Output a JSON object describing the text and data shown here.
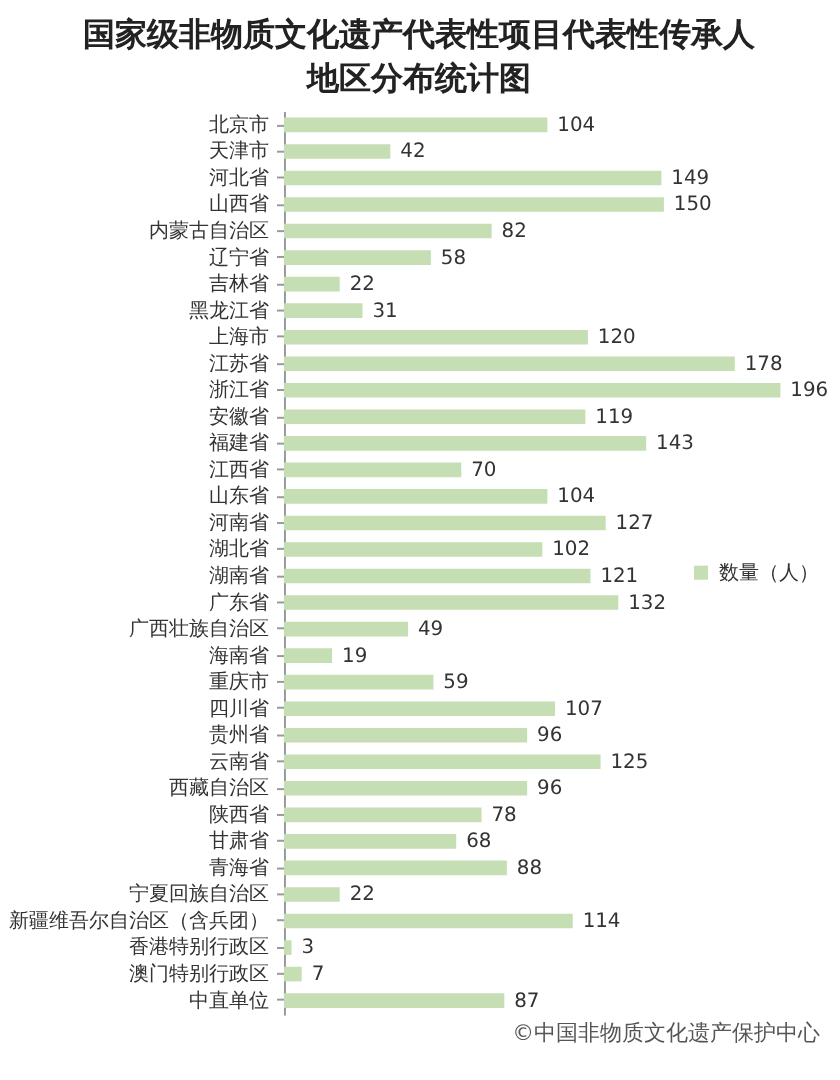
{
  "chart_data": {
    "type": "bar",
    "orientation": "horizontal",
    "title": "国家级非物质文化遗产代表性项目代表性传承人地区分布统计图",
    "categories": [
      "北京市",
      "天津市",
      "河北省",
      "山西省",
      "内蒙古自治区",
      "辽宁省",
      "吉林省",
      "黑龙江省",
      "上海市",
      "江苏省",
      "浙江省",
      "安徽省",
      "福建省",
      "江西省",
      "山东省",
      "河南省",
      "湖北省",
      "湖南省",
      "广东省",
      "广西壮族自治区",
      "海南省",
      "重庆市",
      "四川省",
      "贵州省",
      "云南省",
      "西藏自治区",
      "陕西省",
      "甘肃省",
      "青海省",
      "宁夏回族自治区",
      "新疆维吾尔自治区（含兵团）",
      "香港特别行政区",
      "澳门特别行政区",
      "中直单位"
    ],
    "series": [
      {
        "name": "数量（人）",
        "color": "#c5deb3",
        "values": [
          104,
          42,
          149,
          150,
          82,
          58,
          22,
          31,
          120,
          178,
          196,
          119,
          143,
          70,
          104,
          127,
          102,
          121,
          132,
          49,
          19,
          59,
          107,
          96,
          125,
          96,
          78,
          68,
          88,
          22,
          114,
          3,
          7,
          87
        ]
      }
    ],
    "data_labels": true,
    "legend": "right",
    "annotations": [
      "©中国非物质文化遗产保护中心"
    ]
  }
}
